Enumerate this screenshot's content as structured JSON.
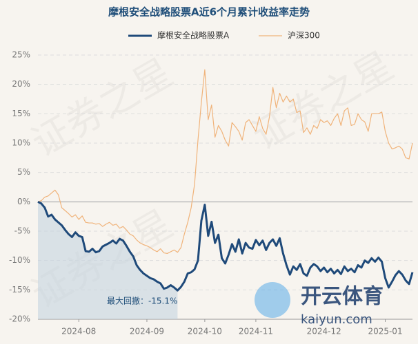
{
  "chart_data": {
    "type": "line",
    "title": "摩根安全战略股票A近6个月累计收益率走势",
    "annotation": "最大回撤：-15.1%",
    "watermarks": [
      "证券之星",
      "开云体育",
      "kaiyun.com"
    ],
    "xlim": [
      0,
      110
    ],
    "xticks": [
      {
        "value": 12,
        "label": "2024-08"
      },
      {
        "value": 32,
        "label": "2024-09"
      },
      {
        "value": 49,
        "label": "2024-10"
      },
      {
        "value": 64,
        "label": "2024-11"
      },
      {
        "value": 84,
        "label": "2024-12"
      },
      {
        "value": 102,
        "label": "2025-01"
      }
    ],
    "ylim": [
      -20,
      25
    ],
    "yticks": [
      {
        "value": -20,
        "label": "-20%"
      },
      {
        "value": -15,
        "label": "-15%"
      },
      {
        "value": -10,
        "label": "-10%"
      },
      {
        "value": -5,
        "label": "-5%"
      },
      {
        "value": 0,
        "label": "0%"
      },
      {
        "value": 5,
        "label": "5%"
      },
      {
        "value": 10,
        "label": "10%"
      },
      {
        "value": 15,
        "label": "15%"
      },
      {
        "value": 20,
        "label": "20%"
      },
      {
        "value": 25,
        "label": "25%"
      }
    ],
    "grid": true,
    "series": [
      {
        "name": "摩根安全战略股票A",
        "color": "#1f4a7a",
        "values": [
          0,
          -0.3,
          -1,
          -2.5,
          -2.2,
          -3,
          -3.5,
          -4,
          -4.8,
          -5.5,
          -6,
          -5.2,
          -5.8,
          -6,
          -8.4,
          -8.5,
          -8,
          -8.6,
          -8.4,
          -7.6,
          -7.3,
          -7,
          -6.6,
          -7.1,
          -6.3,
          -6.6,
          -7.5,
          -8.5,
          -9.3,
          -10.8,
          -11.6,
          -12.2,
          -12.6,
          -13,
          -13.2,
          -13.6,
          -13.9,
          -14.8,
          -14.6,
          -14.2,
          -14.6,
          -15.1,
          -14.5,
          -13.6,
          -12.2,
          -12,
          -11.5,
          -10,
          -3.2,
          -0.5,
          -5.8,
          -3.4,
          -7,
          -5.6,
          -9.6,
          -10.5,
          -9,
          -7.2,
          -8.5,
          -6.4,
          -8.8,
          -7,
          -7.8,
          -8,
          -6.5,
          -7.4,
          -6.6,
          -8.2,
          -7,
          -6.4,
          -7.5,
          -6.2,
          -8.8,
          -10.8,
          -12.4,
          -11,
          -11.6,
          -10.6,
          -12.2,
          -12.6,
          -11.2,
          -10.6,
          -11,
          -11.8,
          -11.2,
          -12,
          -11.4,
          -12.2,
          -11.6,
          -12.3,
          -11,
          -11.8,
          -11.4,
          -12,
          -10.8,
          -11.2,
          -10,
          -10.4,
          -9.6,
          -10.2,
          -9.5,
          -10.2,
          -13,
          -14.6,
          -13.6,
          -12.5,
          -11.8,
          -12.4,
          -13.4,
          -14,
          -12
        ]
      },
      {
        "name": "沪深300",
        "color": "#f0b37a",
        "values": [
          0,
          0.2,
          0.8,
          1,
          1.5,
          2,
          1.2,
          -1,
          -1.5,
          -2,
          -2.6,
          -2.2,
          -3,
          -2.4,
          -3.5,
          -3.6,
          -3.6,
          -3.8,
          -3.7,
          -4.2,
          -3.8,
          -3.5,
          -4,
          -3.8,
          -4.5,
          -4.2,
          -4.8,
          -5.5,
          -5.8,
          -6.5,
          -7,
          -7.3,
          -7.5,
          -7.8,
          -8.2,
          -8.5,
          -8,
          -8.7,
          -8.8,
          -8.5,
          -8.2,
          -8.6,
          -7.8,
          -5.5,
          -3.5,
          -1,
          3,
          10.5,
          17,
          22.5,
          14,
          16.5,
          11,
          13,
          12,
          10.5,
          9.5,
          13.5,
          12.8,
          12,
          10.5,
          13.5,
          14,
          13,
          12,
          14.5,
          12.5,
          11.5,
          14.5,
          19.5,
          16,
          18.5,
          17,
          18,
          17,
          17.5,
          15.2,
          15.5,
          11.8,
          12.6,
          11.5,
          13,
          12.5,
          14,
          13.5,
          13.8,
          13,
          14.2,
          15,
          13,
          15.5,
          16,
          13,
          13.2,
          15,
          14,
          13.6,
          12,
          15,
          15,
          15,
          15.3,
          12,
          10,
          9,
          9.2,
          9.5,
          9,
          7.5,
          7.3,
          10
        ]
      }
    ]
  }
}
